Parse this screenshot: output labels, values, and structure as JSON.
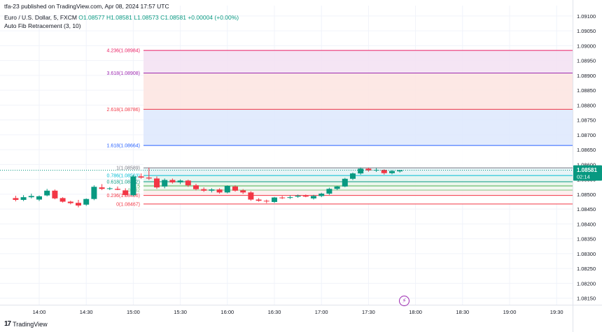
{
  "header": {
    "publisher": "tfa-23 published on TradingView.com, Apr 08, 2024 17:57 UTC",
    "symbol": "Euro / U.S. Dollar, 5, FXCM",
    "ohlc": {
      "o": "O1.08577",
      "h": "H1.08581",
      "l": "L1.08573",
      "c": "C1.08581",
      "chg": "+0.00004 (+0.00%)"
    },
    "indicator": "Auto Fib Retracement (3, 10)"
  },
  "footer": {
    "brand": "TradingView"
  },
  "chart_data": {
    "type": "candlestick",
    "x_ticks": [
      "14:00",
      "14:30",
      "15:00",
      "15:30",
      "16:00",
      "16:30",
      "17:00",
      "17:30",
      "18:00",
      "18:30",
      "19:00",
      "19:30"
    ],
    "y_ticks": [
      "1.09100",
      "1.09050",
      "1.09000",
      "1.08950",
      "1.08900",
      "1.08850",
      "1.08800",
      "1.08750",
      "1.08700",
      "1.08650",
      "1.08600",
      "1.08550",
      "1.08500",
      "1.08450",
      "1.08400",
      "1.08350",
      "1.08300",
      "1.08250",
      "1.08200",
      "1.08150"
    ],
    "ylim": [
      1.08128,
      1.09135
    ],
    "last_price": {
      "label": "1.08581",
      "countdown": "02:14",
      "value": 1.08581
    },
    "colors": {
      "up": "#089981",
      "down": "#f23645"
    },
    "fib_levels": [
      {
        "ratio": 4.236,
        "label": "4.236(1.08984)",
        "price": 1.08984,
        "color": "#e91e63",
        "fill": "#fce4ec"
      },
      {
        "ratio": 3.618,
        "label": "3.618(1.08908)",
        "price": 1.08908,
        "color": "#9c27b0",
        "fill": "#f3e0f2"
      },
      {
        "ratio": 2.618,
        "label": "2.618(1.08786)",
        "price": 1.08786,
        "color": "#f23645",
        "fill": "#fde4e1"
      },
      {
        "ratio": 1.618,
        "label": "1.618(1.08664)",
        "price": 1.08664,
        "color": "#2962ff",
        "fill": "#dde8fd"
      },
      {
        "ratio": 1,
        "label": "1(1.08589)",
        "price": 1.08589,
        "color": "#787b86",
        "fill": "#ffffff"
      },
      {
        "ratio": 0.786,
        "label": "0.786(1.08563)",
        "price": 1.08563,
        "color": "#00bcd4",
        "fill": "#e3f2f6"
      },
      {
        "ratio": 0.618,
        "label": "0.618(1.08542)",
        "price": 1.08542,
        "color": "#089981",
        "fill": "#e2f4ef"
      },
      {
        "ratio": 0.5,
        "label": "0.5",
        "price": 1.08528,
        "color": "#4caf50",
        "fill": "#e6f4e8"
      },
      {
        "ratio": 0.382,
        "label": "0.382",
        "price": 1.08514,
        "color": "#81c784",
        "fill": "#eef7ee"
      },
      {
        "ratio": 0.236,
        "label": "0.236(1.08496)",
        "price": 1.08496,
        "color": "#f23645",
        "fill": "#fdecec"
      },
      {
        "ratio": 0,
        "label": "0(1.08467)",
        "price": 1.08467,
        "color": "#f23645",
        "fill": "#ffffff"
      }
    ],
    "candles": [
      {
        "t": "13:45",
        "o": 1.08487,
        "h": 1.08495,
        "l": 1.08476,
        "c": 1.08481
      },
      {
        "t": "13:50",
        "o": 1.08481,
        "h": 1.08497,
        "l": 1.08477,
        "c": 1.0849
      },
      {
        "t": "13:55",
        "o": 1.0849,
        "h": 1.08502,
        "l": 1.08486,
        "c": 1.08494
      },
      {
        "t": "14:00",
        "o": 1.08482,
        "h": 1.08496,
        "l": 1.08477,
        "c": 1.08493
      },
      {
        "t": "14:05",
        "o": 1.08496,
        "h": 1.08518,
        "l": 1.08493,
        "c": 1.08512
      },
      {
        "t": "14:10",
        "o": 1.08512,
        "h": 1.08516,
        "l": 1.08483,
        "c": 1.08486
      },
      {
        "t": "14:15",
        "o": 1.08487,
        "h": 1.0849,
        "l": 1.08472,
        "c": 1.08475
      },
      {
        "t": "14:20",
        "o": 1.08475,
        "h": 1.08478,
        "l": 1.08466,
        "c": 1.0847
      },
      {
        "t": "14:25",
        "o": 1.08471,
        "h": 1.08481,
        "l": 1.08456,
        "c": 1.08462
      },
      {
        "t": "14:30",
        "o": 1.08465,
        "h": 1.08486,
        "l": 1.08461,
        "c": 1.08484
      },
      {
        "t": "14:35",
        "o": 1.08484,
        "h": 1.0853,
        "l": 1.0848,
        "c": 1.08525
      },
      {
        "t": "14:40",
        "o": 1.08523,
        "h": 1.08534,
        "l": 1.08514,
        "c": 1.08518
      },
      {
        "t": "14:45",
        "o": 1.08518,
        "h": 1.08524,
        "l": 1.08514,
        "c": 1.0852
      },
      {
        "t": "14:50",
        "o": 1.08518,
        "h": 1.08526,
        "l": 1.08514,
        "c": 1.08515
      },
      {
        "t": "14:55",
        "o": 1.08513,
        "h": 1.0852,
        "l": 1.08492,
        "c": 1.08497
      },
      {
        "t": "15:00",
        "o": 1.08497,
        "h": 1.08565,
        "l": 1.08493,
        "c": 1.0856
      },
      {
        "t": "15:05",
        "o": 1.0856,
        "h": 1.0857,
        "l": 1.08552,
        "c": 1.08556
      },
      {
        "t": "15:10",
        "o": 1.08556,
        "h": 1.08589,
        "l": 1.08548,
        "c": 1.08553
      },
      {
        "t": "15:15",
        "o": 1.08553,
        "h": 1.0856,
        "l": 1.08518,
        "c": 1.08523
      },
      {
        "t": "15:20",
        "o": 1.08526,
        "h": 1.08553,
        "l": 1.0852,
        "c": 1.08548
      },
      {
        "t": "15:25",
        "o": 1.08548,
        "h": 1.08553,
        "l": 1.08536,
        "c": 1.0854
      },
      {
        "t": "15:30",
        "o": 1.0854,
        "h": 1.0855,
        "l": 1.08534,
        "c": 1.08546
      },
      {
        "t": "15:35",
        "o": 1.08546,
        "h": 1.08549,
        "l": 1.08525,
        "c": 1.0853
      },
      {
        "t": "15:40",
        "o": 1.0853,
        "h": 1.08535,
        "l": 1.08513,
        "c": 1.08517
      },
      {
        "t": "15:45",
        "o": 1.08517,
        "h": 1.08523,
        "l": 1.08508,
        "c": 1.08512
      },
      {
        "t": "15:50",
        "o": 1.08512,
        "h": 1.0852,
        "l": 1.08506,
        "c": 1.08516
      },
      {
        "t": "15:55",
        "o": 1.08516,
        "h": 1.0852,
        "l": 1.08502,
        "c": 1.08506
      },
      {
        "t": "16:00",
        "o": 1.08506,
        "h": 1.0853,
        "l": 1.08503,
        "c": 1.08528
      },
      {
        "t": "16:05",
        "o": 1.08526,
        "h": 1.0853,
        "l": 1.08509,
        "c": 1.08512
      },
      {
        "t": "16:10",
        "o": 1.08513,
        "h": 1.08517,
        "l": 1.08501,
        "c": 1.08506
      },
      {
        "t": "16:15",
        "o": 1.08506,
        "h": 1.0851,
        "l": 1.08478,
        "c": 1.08482
      },
      {
        "t": "16:20",
        "o": 1.08482,
        "h": 1.08487,
        "l": 1.08475,
        "c": 1.08478
      },
      {
        "t": "16:25",
        "o": 1.08478,
        "h": 1.08482,
        "l": 1.0847,
        "c": 1.08476
      },
      {
        "t": "16:30",
        "o": 1.08474,
        "h": 1.08491,
        "l": 1.08471,
        "c": 1.08489
      },
      {
        "t": "16:35",
        "o": 1.08489,
        "h": 1.08494,
        "l": 1.08484,
        "c": 1.08488
      },
      {
        "t": "16:40",
        "o": 1.08488,
        "h": 1.08496,
        "l": 1.08484,
        "c": 1.0849
      },
      {
        "t": "16:45",
        "o": 1.08492,
        "h": 1.08499,
        "l": 1.08488,
        "c": 1.08495
      },
      {
        "t": "16:50",
        "o": 1.08495,
        "h": 1.08499,
        "l": 1.0849,
        "c": 1.08492
      },
      {
        "t": "16:55",
        "o": 1.08486,
        "h": 1.08498,
        "l": 1.08482,
        "c": 1.08494
      },
      {
        "t": "17:00",
        "o": 1.08494,
        "h": 1.08505,
        "l": 1.0849,
        "c": 1.08502
      },
      {
        "t": "17:05",
        "o": 1.08502,
        "h": 1.08522,
        "l": 1.08498,
        "c": 1.08518
      },
      {
        "t": "17:10",
        "o": 1.08518,
        "h": 1.08528,
        "l": 1.08514,
        "c": 1.08526
      },
      {
        "t": "17:15",
        "o": 1.08526,
        "h": 1.08555,
        "l": 1.08524,
        "c": 1.08552
      },
      {
        "t": "17:20",
        "o": 1.08552,
        "h": 1.08573,
        "l": 1.08548,
        "c": 1.0857
      },
      {
        "t": "17:25",
        "o": 1.0857,
        "h": 1.0859,
        "l": 1.08566,
        "c": 1.08586
      },
      {
        "t": "17:30",
        "o": 1.08586,
        "h": 1.08589,
        "l": 1.08576,
        "c": 1.0858
      },
      {
        "t": "17:35",
        "o": 1.0858,
        "h": 1.08588,
        "l": 1.08575,
        "c": 1.08582
      },
      {
        "t": "17:40",
        "o": 1.08582,
        "h": 1.08584,
        "l": 1.08566,
        "c": 1.08571
      },
      {
        "t": "17:45",
        "o": 1.08571,
        "h": 1.08581,
        "l": 1.08567,
        "c": 1.08578
      },
      {
        "t": "17:50",
        "o": 1.08577,
        "h": 1.08581,
        "l": 1.08573,
        "c": 1.08581
      }
    ]
  }
}
